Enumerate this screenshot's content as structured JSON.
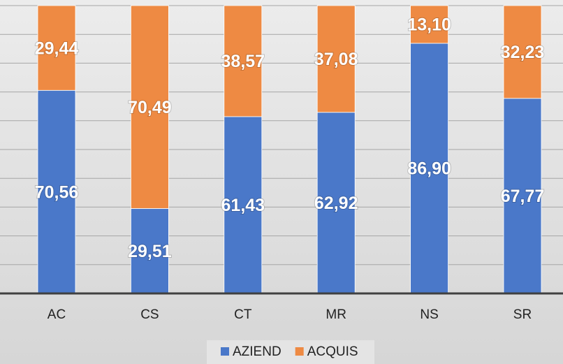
{
  "chart_data": {
    "type": "stacked_bar",
    "categories": [
      "AC",
      "CS",
      "CT",
      "MR",
      "NS",
      "SR"
    ],
    "series": [
      {
        "name": "AZIEND",
        "color": "#4a78c9",
        "values": [
          70.56,
          29.51,
          61.43,
          62.92,
          86.9,
          67.77
        ],
        "value_labels": [
          "70,56",
          "29,51",
          "61,43",
          "62,92",
          "86,90",
          "67,77"
        ]
      },
      {
        "name": "ACQUIS",
        "color": "#ee8a43",
        "values": [
          29.44,
          70.49,
          38.57,
          37.08,
          13.1,
          32.23
        ],
        "value_labels": [
          "29,44",
          "70,49",
          "38,57",
          "37,08",
          "13,10",
          "32,23"
        ]
      }
    ],
    "ylim": [
      0,
      100
    ],
    "yticks": [
      0,
      10,
      20,
      30,
      40,
      50,
      60,
      70,
      80,
      90,
      100
    ],
    "grid": true,
    "legend": "bottom"
  }
}
